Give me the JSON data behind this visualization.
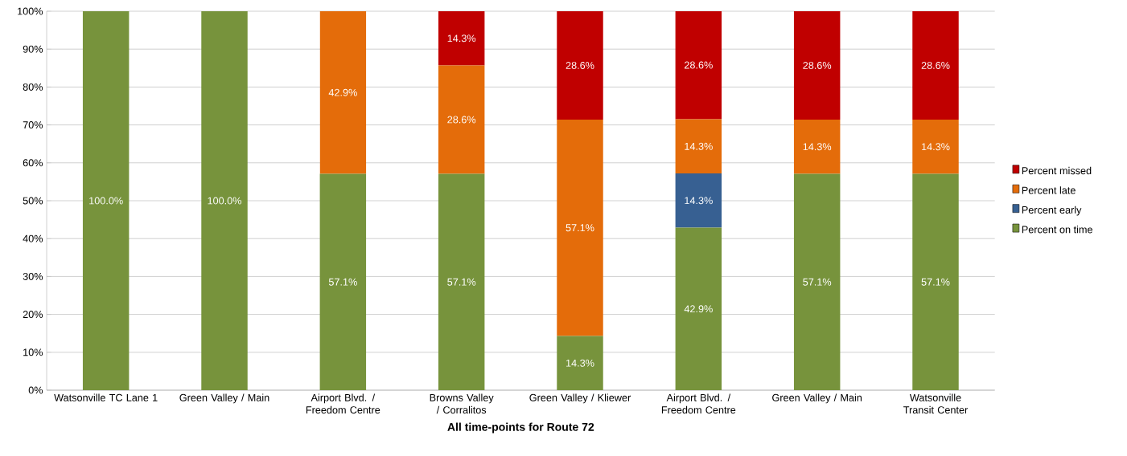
{
  "chart_data": {
    "type": "bar",
    "stacked": true,
    "xlabel": "**All time-points for Route 72**",
    "categories": [
      "Watsonville TC Lane 1",
      "Green Valley / Main",
      "Airport Blvd. / Freedom Centre",
      "Browns Valley / Corralitos",
      "Green Valley / Kliewer",
      "Airport Blvd. / Freedom Centre",
      "Green Valley / Main",
      "Watsonville Transit Center"
    ],
    "series": [
      {
        "name": "Percent on time",
        "color": "#77933c",
        "values": [
          100,
          100,
          57.1,
          57.1,
          14.3,
          42.9,
          57.1,
          57.1
        ],
        "value_labels": [
          "100.0%",
          "100.0%",
          "57.1%",
          "57.1%",
          "14.3%",
          "42.9%",
          "57.1%",
          "57.1%"
        ]
      },
      {
        "name": "Percent early",
        "color": "#376092",
        "values": [
          0,
          0,
          0,
          0,
          0,
          14.3,
          0,
          0
        ],
        "value_labels": [
          null,
          null,
          null,
          null,
          null,
          "14.3%",
          null,
          null
        ]
      },
      {
        "name": "Percent late",
        "color": "#e46c0a",
        "values": [
          0,
          0,
          42.9,
          28.6,
          57.1,
          14.3,
          14.3,
          14.3
        ],
        "value_labels": [
          null,
          null,
          "42.9%",
          "28.6%",
          "57.1%",
          "14.3%",
          "14.3%",
          "14.3%"
        ]
      },
      {
        "name": "Percent missed",
        "color": "#c00000",
        "values": [
          0,
          0,
          0,
          14.3,
          28.6,
          28.6,
          28.6,
          28.6
        ],
        "value_labels": [
          null,
          null,
          null,
          "14.3%",
          "28.6%",
          "28.6%",
          "28.6%",
          "28.6%"
        ]
      }
    ],
    "ylim": [
      0,
      100
    ],
    "yticks": [
      {
        "value": 0,
        "label": "0%"
      },
      {
        "value": 10,
        "label": "10%"
      },
      {
        "value": 20,
        "label": "20%"
      },
      {
        "value": 30,
        "label": "30%"
      },
      {
        "value": 40,
        "label": "40%"
      },
      {
        "value": 50,
        "label": "50%"
      },
      {
        "value": 60,
        "label": "60%"
      },
      {
        "value": 70,
        "label": "70%"
      },
      {
        "value": 80,
        "label": "80%"
      },
      {
        "value": 90,
        "label": "90%"
      },
      {
        "value": 100,
        "label": "100%"
      }
    ],
    "grid": "y",
    "legend": "right"
  }
}
